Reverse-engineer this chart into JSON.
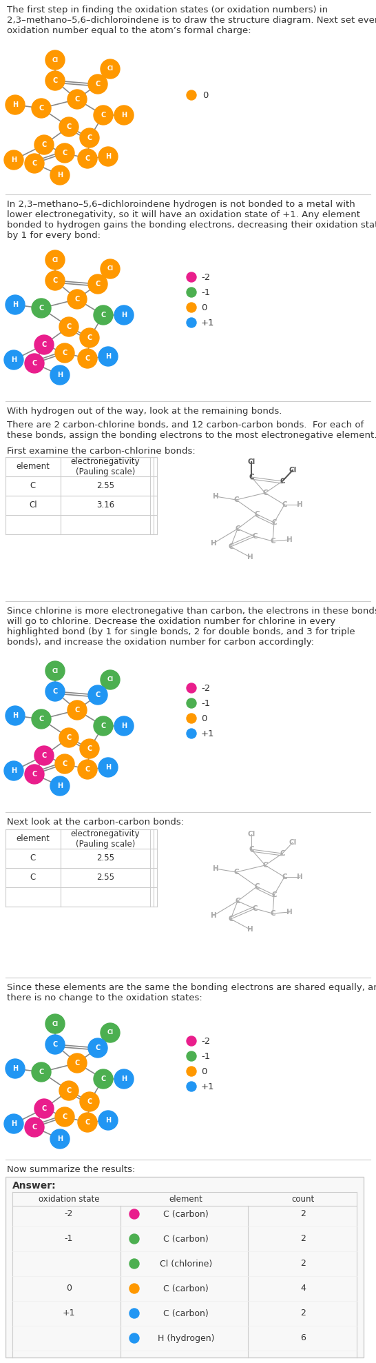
{
  "orange_color": "#ff9800",
  "green_color": "#4caf50",
  "blue_color": "#2196f3",
  "pink_color": "#e91e8c",
  "bg_color": "#ffffff",
  "text_color": "#333333",
  "divider_color": "#cccccc",
  "legend_items": [
    {
      "color": "#e91e8c",
      "label": "-2"
    },
    {
      "color": "#4caf50",
      "label": "-1"
    },
    {
      "color": "#ff9800",
      "label": "0"
    },
    {
      "color": "#2196f3",
      "label": "+1"
    }
  ],
  "answer_rows": [
    [
      "-2",
      "C (carbon)",
      "2",
      "#e91e8c"
    ],
    [
      "-1",
      "C (carbon)",
      "2",
      "#4caf50"
    ],
    [
      "",
      "Cl (chlorine)",
      "2",
      "#4caf50"
    ],
    [
      "0",
      "C (carbon)",
      "4",
      "#ff9800"
    ],
    [
      "+1",
      "C (carbon)",
      "2",
      "#2196f3"
    ],
    [
      "",
      "H (hydrogen)",
      "6",
      "#2196f3"
    ]
  ]
}
